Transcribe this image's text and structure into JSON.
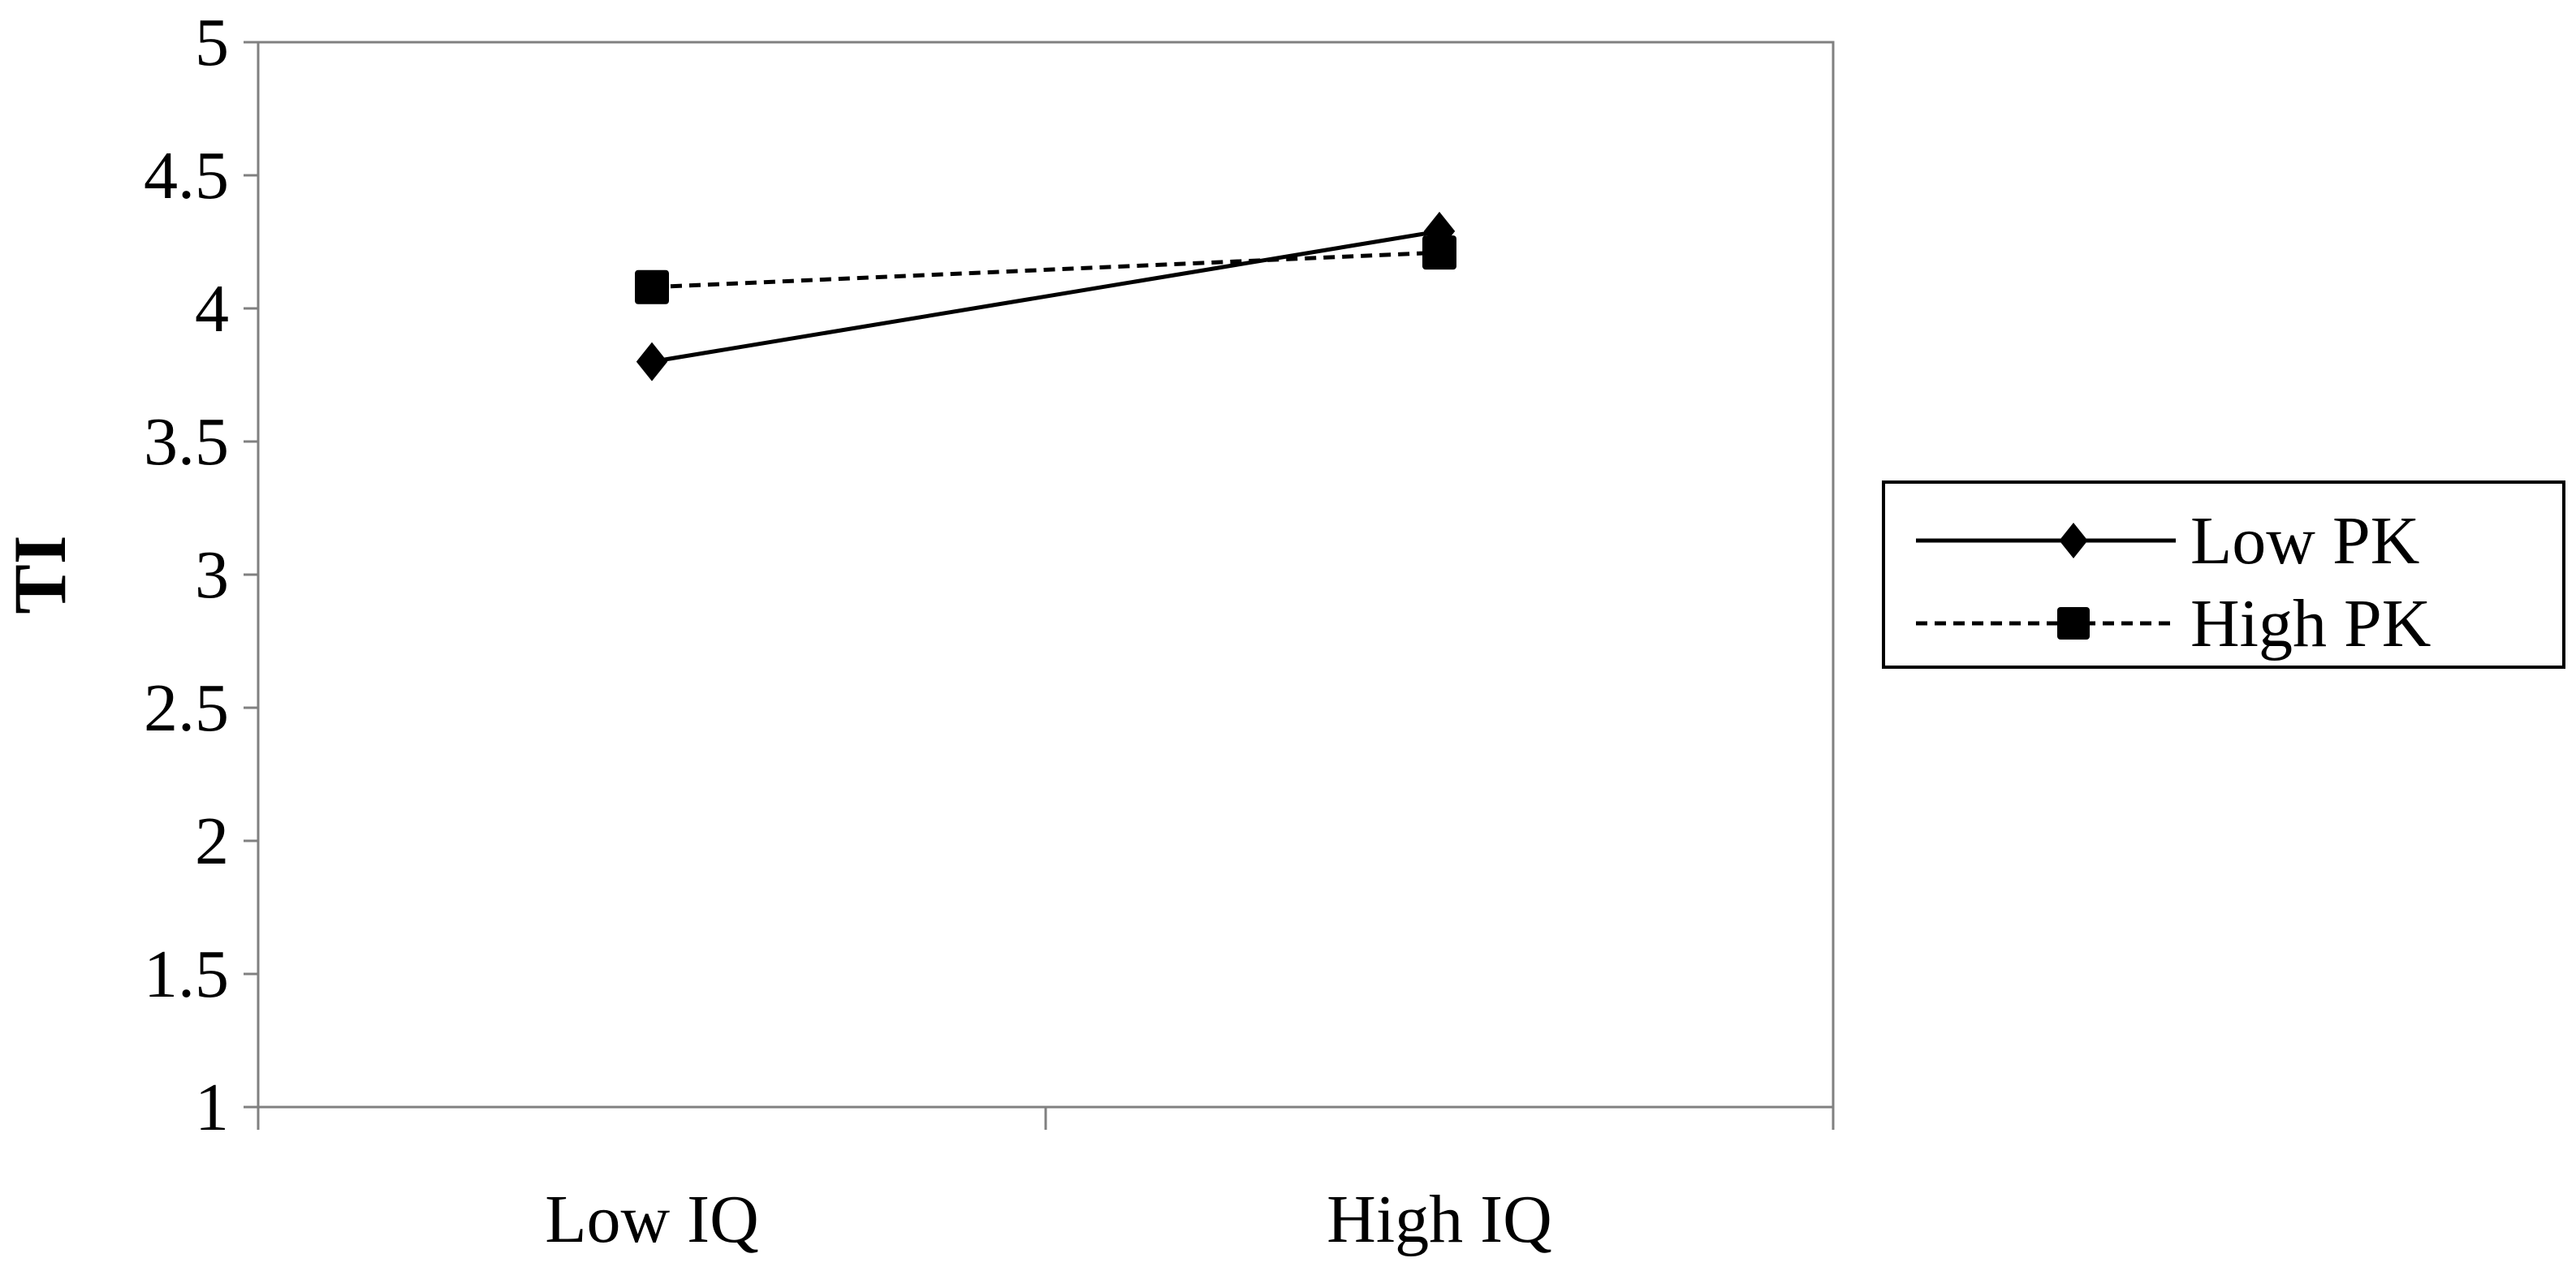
{
  "chart_data": {
    "type": "line",
    "categories": [
      "Low IQ",
      "High IQ"
    ],
    "series": [
      {
        "name": "Low PK",
        "values": [
          3.8,
          4.29
        ],
        "line_style": "solid",
        "marker": "diamond",
        "color": "#000000"
      },
      {
        "name": "High PK",
        "values": [
          4.08,
          4.21
        ],
        "line_style": "dashed",
        "marker": "square",
        "color": "#000000"
      }
    ],
    "title": "",
    "xlabel": "",
    "ylabel": "TI",
    "ylim": [
      1,
      5
    ],
    "yticks": [
      "1",
      "1.5",
      "2",
      "2.5",
      "3",
      "3.5",
      "4",
      "4.5",
      "5"
    ],
    "grid": false,
    "legend_position": "right"
  }
}
